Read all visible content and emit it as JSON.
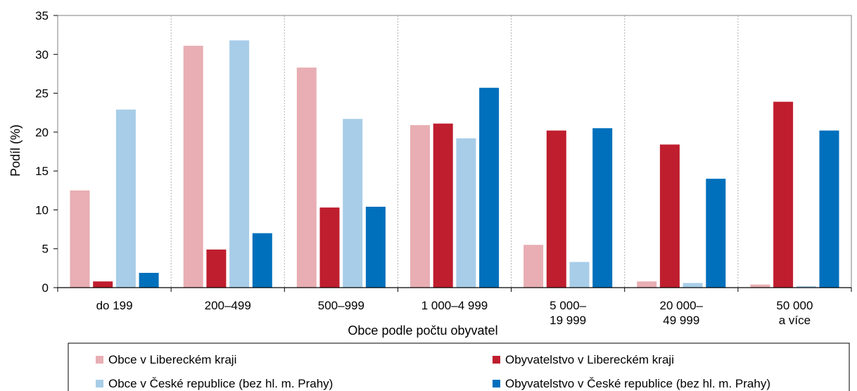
{
  "chart_data": {
    "type": "bar",
    "xlabel": "Obce podle počtu obyvatel",
    "ylabel": "Podíl (%)",
    "ylim": [
      0,
      35
    ],
    "yticks": [
      0,
      5,
      10,
      15,
      20,
      25,
      30,
      35
    ],
    "categories": [
      [
        "do 199"
      ],
      [
        "200–499"
      ],
      [
        "500–999"
      ],
      [
        "1 000–4 999"
      ],
      [
        "5 000–",
        "19 999"
      ],
      [
        "20 000–",
        "49 999"
      ],
      [
        "50 000",
        "a více"
      ]
    ],
    "series": [
      {
        "name": "Obce v Libereckém kraji",
        "color": "#e8aeb3",
        "values": [
          12.5,
          31.1,
          28.3,
          20.9,
          5.5,
          0.8,
          0.4
        ]
      },
      {
        "name": "Obyvatelstvo v Libereckém kraji",
        "color": "#bf1e2e",
        "values": [
          0.8,
          4.9,
          10.3,
          21.1,
          20.2,
          18.4,
          23.9
        ]
      },
      {
        "name": "Obce v České republice (bez hl. m. Prahy)",
        "color": "#a7cde8",
        "values": [
          22.9,
          31.8,
          21.7,
          19.2,
          3.3,
          0.6,
          0.2
        ]
      },
      {
        "name": "Obyvatelstvo v České republice (bez hl. m. Prahy)",
        "color": "#0070bc",
        "values": [
          1.9,
          7.0,
          10.4,
          25.7,
          20.5,
          14.0,
          20.2
        ]
      }
    ],
    "grid": "vertical dotted category separators",
    "legend_position": "bottom"
  }
}
